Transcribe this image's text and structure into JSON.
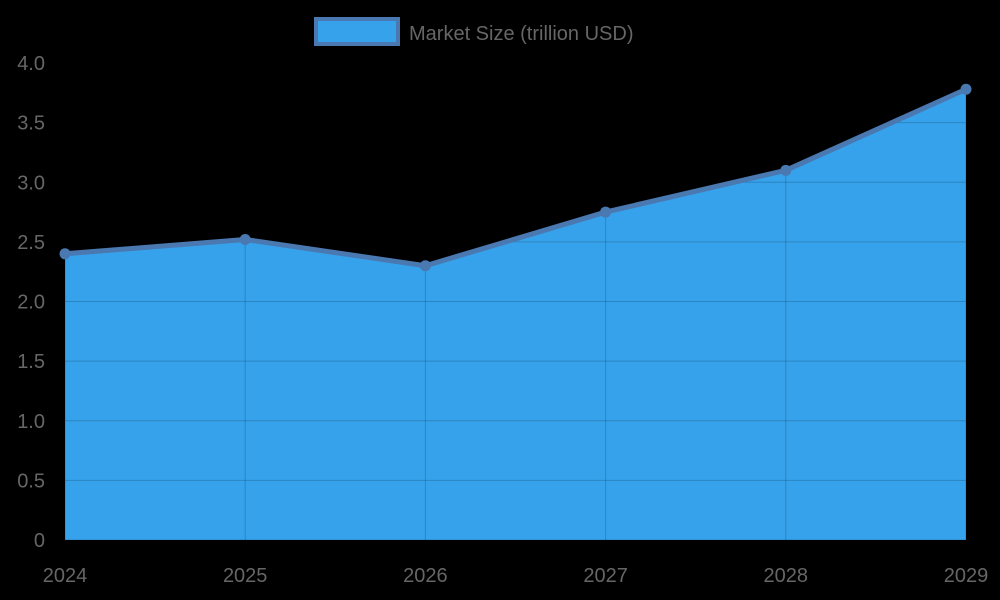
{
  "legend": {
    "label": "Market Size (trillion USD)"
  },
  "colors": {
    "fill": "#36a2eb",
    "line": "#4a78b0",
    "grid": "rgba(0,0,0,0.18)",
    "text": "#666666",
    "background": "#000000"
  },
  "chart_data": {
    "type": "area",
    "title": "",
    "categories": [
      "2024",
      "2025",
      "2026",
      "2027",
      "2028",
      "2029"
    ],
    "series": [
      {
        "name": "Market Size (trillion USD)",
        "values": [
          2.4,
          2.52,
          2.3,
          2.75,
          3.1,
          3.78
        ]
      }
    ],
    "xlabel": "",
    "ylabel": "",
    "ylim": [
      0,
      4.0
    ],
    "yticks": [
      "0",
      "0.5",
      "1.0",
      "1.5",
      "2.0",
      "2.5",
      "3.0",
      "3.5",
      "4.0"
    ],
    "grid": true,
    "legend_position": "top"
  }
}
